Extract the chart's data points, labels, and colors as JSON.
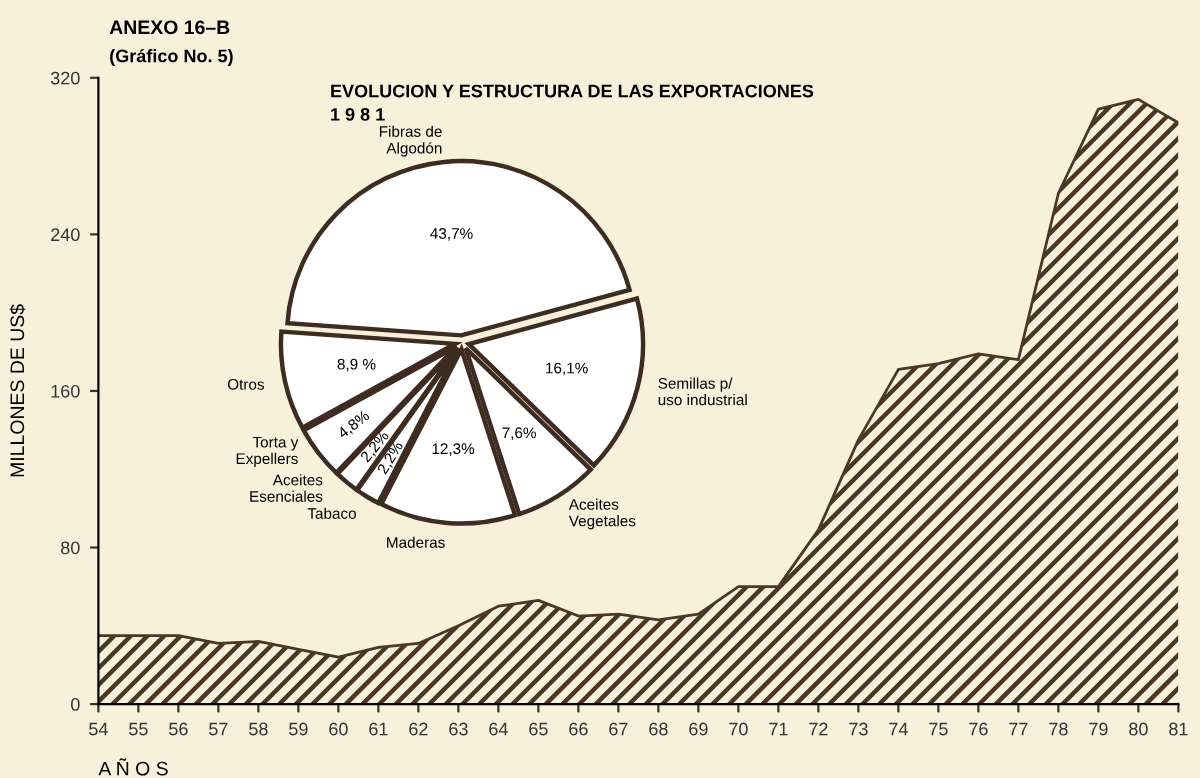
{
  "chart_data": [
    {
      "type": "area",
      "title": "ANEXO 16–B",
      "subtitle": "(Gráfico No. 5)",
      "xlabel": "A Ñ O S",
      "ylabel": "MILLONES DE US$",
      "x": [
        54,
        55,
        56,
        57,
        58,
        59,
        60,
        61,
        62,
        63,
        64,
        65,
        66,
        67,
        68,
        69,
        70,
        71,
        72,
        73,
        74,
        75,
        76,
        77,
        78,
        79,
        80,
        81
      ],
      "values": [
        35,
        35,
        35,
        31,
        32,
        28,
        24,
        29,
        31,
        40,
        50,
        53,
        45,
        46,
        43,
        46,
        60,
        60,
        89,
        135,
        171,
        174,
        179,
        176,
        261,
        304,
        309,
        297
      ],
      "color": "#4a3728",
      "xlim": [
        54,
        81
      ],
      "ylim": [
        0,
        320
      ],
      "xticks": [
        54,
        55,
        56,
        57,
        58,
        59,
        60,
        61,
        62,
        63,
        64,
        65,
        66,
        67,
        68,
        69,
        70,
        71,
        72,
        73,
        74,
        75,
        76,
        77,
        78,
        79,
        80,
        81
      ],
      "yticks": [
        0,
        80,
        160,
        240,
        320
      ],
      "grid": false,
      "legend": false
    },
    {
      "type": "pie",
      "title": "EVOLUCION Y ESTRUCTURA DE LAS EXPORTACIONES",
      "subtitle": "1 9 8 1",
      "categories": [
        "Fibras de\nAlgodón",
        "Semillas p/\nuso industrial",
        "Aceites\nVegetales",
        "Maderas",
        "Tabaco",
        "Aceites\nEsenciales",
        "Torta y\nExpellers",
        "Otros"
      ],
      "values": [
        43.7,
        16.1,
        7.6,
        12.3,
        2.2,
        2.2,
        4.8,
        8.9
      ],
      "value_labels": [
        "43,7%",
        "16,1%",
        "7,6%",
        "12,3%",
        "2,2%",
        "2,2%",
        "4,8%",
        "8,9 %"
      ],
      "colors": [
        "#ffffff",
        "#ffffff",
        "#ffffff",
        "#ffffff",
        "#ffffff",
        "#ffffff",
        "#ffffff",
        "#ffffff"
      ],
      "legend": false
    }
  ]
}
